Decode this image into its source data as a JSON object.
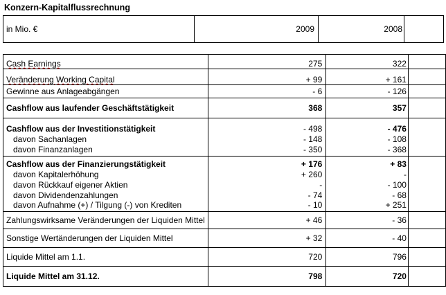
{
  "title": "Konzern-Kapitalflussrechnung",
  "header": {
    "unit": "in Mio. €",
    "col1": "2009",
    "col2": "2008"
  },
  "rows": {
    "cash_earnings": {
      "label": "Cash Earnings",
      "v2009": "275",
      "v2008": "322"
    },
    "working_capital": {
      "label": "Veränderung Working Capital",
      "v2009": "+ 99",
      "v2008": "+ 161"
    },
    "anlageabgaenge": {
      "label": "Gewinne aus Anlageabgängen",
      "v2009": "- 6",
      "v2008": "- 126"
    },
    "cf_laufend": {
      "label": "Cashflow aus laufender Geschäftstätigkeit",
      "v2009": "368",
      "v2008": "357"
    },
    "cf_invest": {
      "label": "Cashflow aus der Investitionstätigkeit",
      "v2009": "- 498",
      "v2008": "- 476"
    },
    "sachanlagen": {
      "label": "davon Sachanlagen",
      "v2009": "- 148",
      "v2008": "- 108"
    },
    "finanzanlagen": {
      "label": "davon Finanzanlagen",
      "v2009": "- 350",
      "v2008": "- 368"
    },
    "cf_finanz": {
      "label": "Cashflow aus der Finanzierungstätigkeit",
      "v2009": "+ 176",
      "v2008": "+ 83"
    },
    "kapitalerhoehung": {
      "label": "davon Kapitalerhöhung",
      "v2009": "+ 260",
      "v2008": "-"
    },
    "rueckkauf": {
      "label": "davon Rückkauf eigener Aktien",
      "v2009": "-",
      "v2008": "- 100"
    },
    "dividenden": {
      "label": "davon Dividendenzahlungen",
      "v2009": "- 74",
      "v2008": "- 68"
    },
    "kredite": {
      "label": "davon Aufnahme (+) / Tilgung (-) von Krediten",
      "v2009": "- 10",
      "v2008": "+ 251"
    },
    "zahlungswirksam": {
      "label": "Zahlungswirksame Veränderungen der Liquiden Mittel",
      "v2009": "+ 46",
      "v2008": "- 36"
    },
    "sonstige": {
      "label": "Sonstige Wertänderungen der Liquiden Mittel",
      "v2009": "+ 32",
      "v2008": "- 40"
    },
    "lm_11": {
      "label": "Liquide Mittel am 1.1.",
      "v2009": "720",
      "v2008": "796"
    },
    "lm_3112": {
      "label": "Liquide Mittel am 31.12.",
      "v2009": "798",
      "v2008": "720"
    }
  }
}
